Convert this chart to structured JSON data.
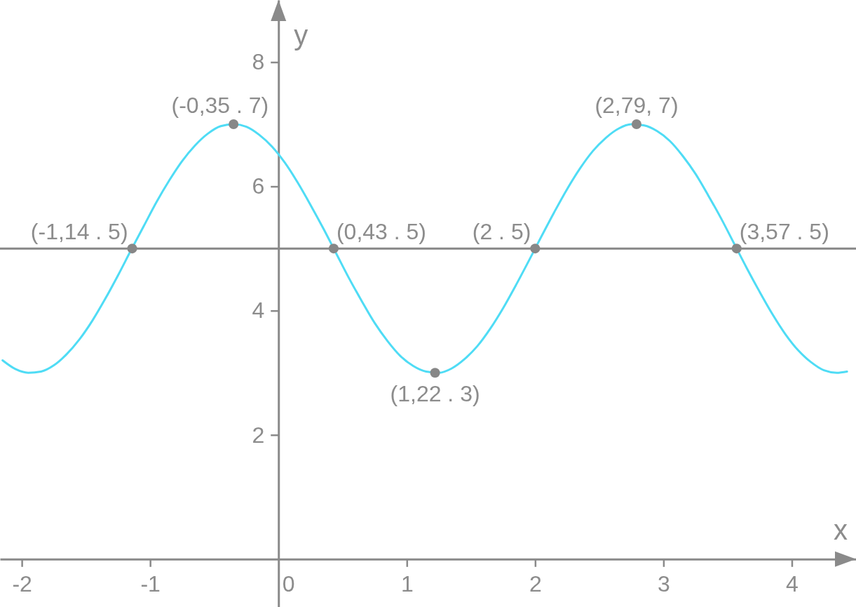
{
  "chart_data": {
    "type": "line",
    "xlabel": "x",
    "ylabel": "y",
    "xlim": [
      -2.17,
      4.5
    ],
    "ylim": [
      -0.77,
      9
    ],
    "xticks": [
      -2,
      -1,
      0,
      1,
      2,
      3,
      4
    ],
    "yticks": [
      2,
      4,
      6,
      8
    ],
    "ref_lines": [
      {
        "axis": "y",
        "value": 5,
        "color": "#878787"
      }
    ],
    "series": [
      {
        "color": "#4fdcf5",
        "x": [
          -2.15,
          -2.05,
          -1.95,
          -1.85,
          -1.75,
          -1.65,
          -1.55,
          -1.45,
          -1.35,
          -1.25,
          -1.15,
          -1.05,
          -0.95,
          -0.85,
          -0.75,
          -0.65,
          -0.55,
          -0.45,
          -0.35,
          -0.25,
          -0.15,
          -0.05,
          0.05,
          0.15,
          0.25,
          0.35,
          0.45,
          0.55,
          0.65,
          0.75,
          0.85,
          0.95,
          1.05,
          1.15,
          1.25,
          1.35,
          1.45,
          1.55,
          1.65,
          1.75,
          1.85,
          1.95,
          2.05,
          2.15,
          2.25,
          2.35,
          2.45,
          2.55,
          2.65,
          2.75,
          2.85,
          2.95,
          3.05,
          3.15,
          3.25,
          3.35,
          3.45,
          3.55,
          3.65,
          3.75,
          3.85,
          3.95,
          4.05,
          4.15,
          4.25,
          4.35,
          4.43
        ],
        "values": [
          3.2,
          3.06,
          3,
          3.02,
          3.12,
          3.3,
          3.54,
          3.84,
          4.19,
          4.57,
          4.97,
          5.36,
          5.75,
          6.1,
          6.41,
          6.66,
          6.85,
          6.97,
          7,
          6.96,
          6.83,
          6.64,
          6.38,
          6.06,
          5.7,
          5.32,
          4.92,
          4.52,
          4.15,
          3.8,
          3.51,
          3.27,
          3.11,
          3.02,
          3,
          3.07,
          3.22,
          3.43,
          3.71,
          4.04,
          4.41,
          4.8,
          5.2,
          5.59,
          5.96,
          6.29,
          6.57,
          6.78,
          6.93,
          7,
          6.98,
          6.89,
          6.73,
          6.49,
          6.2,
          5.85,
          5.48,
          5.08,
          4.68,
          4.3,
          3.94,
          3.62,
          3.36,
          3.17,
          3.04,
          3,
          3.02
        ]
      },
      {
        "type": "scatter",
        "color": "#878787",
        "marker": "circle",
        "x": [
          -1.14,
          -0.35,
          0.43,
          1.22,
          2,
          2.79,
          3.57
        ],
        "values": [
          5,
          7,
          5,
          3,
          5,
          7,
          5
        ],
        "value_labels": [
          "(-1,14 . 5)",
          "(-0,35 . 7)",
          "(0,43 . 5)",
          "(1,22 . 3)",
          "(2 . 5)",
          "(2,79, 7)",
          "(3,57 . 5)"
        ]
      }
    ]
  }
}
